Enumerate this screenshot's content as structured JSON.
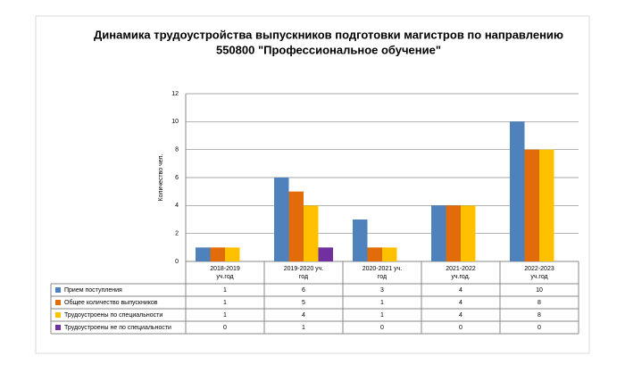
{
  "chart_data": {
    "type": "bar",
    "title": [
      "Динамика трудоустройства выпускников подготовки магистров по направлению",
      "550800 \"Профессиональное обучение\""
    ],
    "y_label": "Количество чел.",
    "categories": [
      [
        "2018-2019",
        "уч.год"
      ],
      [
        "2019-2020 уч.",
        "год"
      ],
      [
        "2020-2021 уч.",
        "год"
      ],
      [
        "2021-2022",
        "уч.год."
      ],
      [
        "2022-2023",
        "уч.год"
      ]
    ],
    "series": [
      {
        "name": "Прием поступления",
        "color": "#4f81bd",
        "values": [
          1,
          6,
          3,
          4,
          10
        ]
      },
      {
        "name": "Общее количество выпускников",
        "color": "#e36c0a",
        "values": [
          1,
          5,
          1,
          4,
          8
        ]
      },
      {
        "name": "Трудоустроены по специальности",
        "color": "#ffc000",
        "values": [
          1,
          4,
          1,
          4,
          8
        ]
      },
      {
        "name": "Трудоустроены не по специальности",
        "color": "#7030a0",
        "values": [
          0,
          1,
          0,
          0,
          0
        ]
      }
    ],
    "ylim": [
      0,
      12
    ],
    "yticks": [
      0,
      2,
      4,
      6,
      8,
      10,
      12
    ],
    "grid": true
  }
}
